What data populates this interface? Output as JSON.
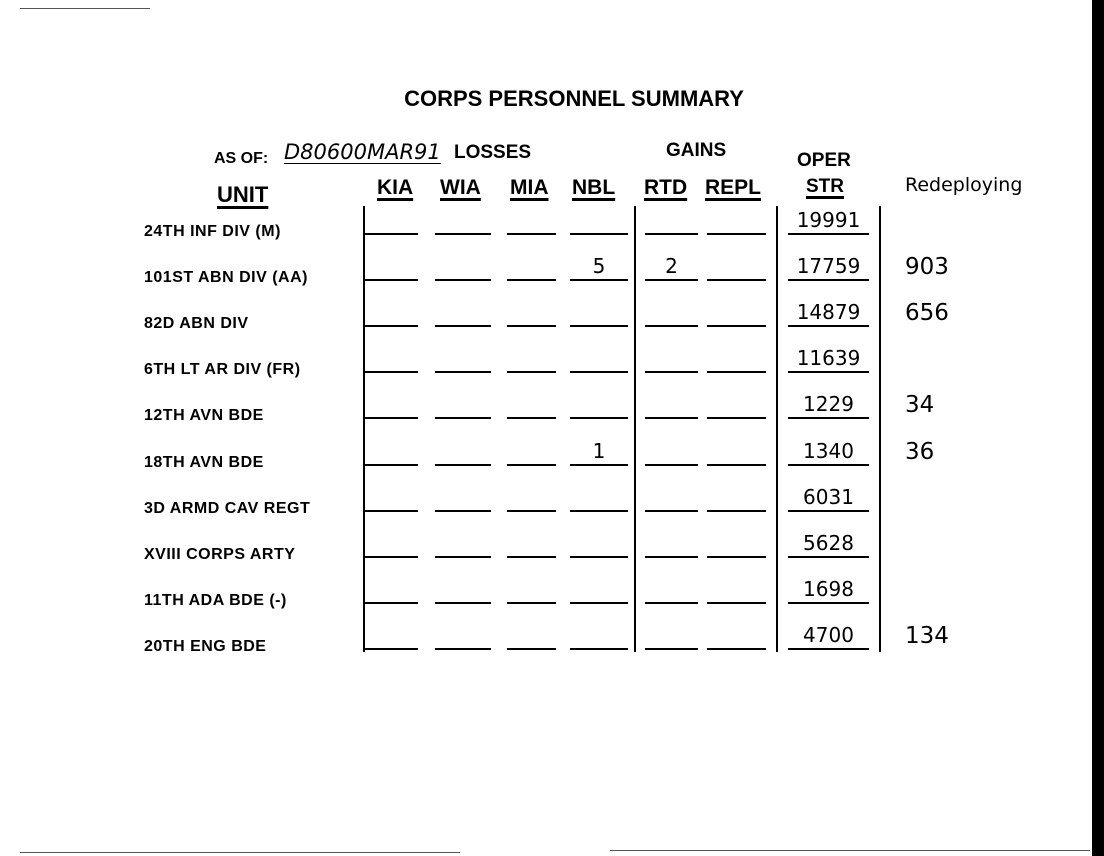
{
  "title": "CORPS PERSONNEL SUMMARY",
  "as_of_label": "AS OF:",
  "as_of_value": "D80600MAR91",
  "group_headers": {
    "losses": "LOSSES",
    "gains": "GAINS",
    "oper": "OPER"
  },
  "columns": {
    "unit": "UNIT",
    "kia": "KIA",
    "wia": "WIA",
    "mia": "MIA",
    "nbl": "NBL",
    "rtd": "RTD",
    "repl": "REPL",
    "str": "STR",
    "redeploying": "Redeploying"
  },
  "rows": [
    {
      "unit": "24TH INF DIV (M)",
      "kia": "",
      "wia": "",
      "mia": "",
      "nbl": "",
      "rtd": "",
      "repl": "",
      "oper_str": "19991",
      "redeploying": ""
    },
    {
      "unit": "101ST ABN DIV (AA)",
      "kia": "",
      "wia": "",
      "mia": "",
      "nbl": "5",
      "rtd": "2",
      "repl": "",
      "oper_str": "17759",
      "redeploying": "903"
    },
    {
      "unit": "82D ABN DIV",
      "kia": "",
      "wia": "",
      "mia": "",
      "nbl": "",
      "rtd": "",
      "repl": "",
      "oper_str": "14879",
      "redeploying": "656"
    },
    {
      "unit": "6TH LT AR DIV (FR)",
      "kia": "",
      "wia": "",
      "mia": "",
      "nbl": "",
      "rtd": "",
      "repl": "",
      "oper_str": "11639",
      "redeploying": ""
    },
    {
      "unit": "12TH AVN BDE",
      "kia": "",
      "wia": "",
      "mia": "",
      "nbl": "",
      "rtd": "",
      "repl": "",
      "oper_str": "1229",
      "redeploying": "34"
    },
    {
      "unit": "18TH AVN BDE",
      "kia": "",
      "wia": "",
      "mia": "",
      "nbl": "1",
      "rtd": "",
      "repl": "",
      "oper_str": "1340",
      "redeploying": "36"
    },
    {
      "unit": "3D ARMD CAV REGT",
      "kia": "",
      "wia": "",
      "mia": "",
      "nbl": "",
      "rtd": "",
      "repl": "",
      "oper_str": "6031",
      "redeploying": ""
    },
    {
      "unit": "XVIII CORPS ARTY",
      "kia": "",
      "wia": "",
      "mia": "",
      "nbl": "",
      "rtd": "",
      "repl": "",
      "oper_str": "5628",
      "redeploying": ""
    },
    {
      "unit": "11TH ADA BDE (-)",
      "kia": "",
      "wia": "",
      "mia": "",
      "nbl": "",
      "rtd": "",
      "repl": "",
      "oper_str": "1698",
      "redeploying": ""
    },
    {
      "unit": "20TH ENG BDE",
      "kia": "",
      "wia": "",
      "mia": "",
      "nbl": "",
      "rtd": "",
      "repl": "",
      "oper_str": "4700",
      "redeploying": "134"
    }
  ]
}
